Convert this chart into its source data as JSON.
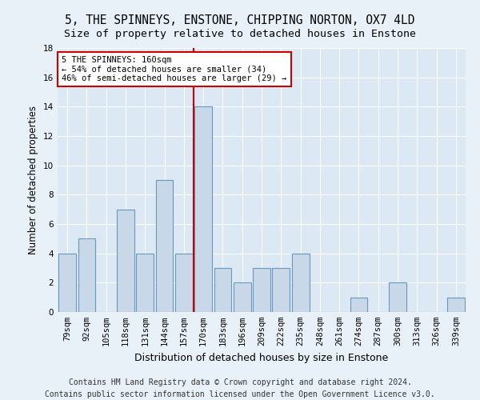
{
  "title1": "5, THE SPINNEYS, ENSTONE, CHIPPING NORTON, OX7 4LD",
  "title2": "Size of property relative to detached houses in Enstone",
  "xlabel": "Distribution of detached houses by size in Enstone",
  "ylabel": "Number of detached properties",
  "categories": [
    "79sqm",
    "92sqm",
    "105sqm",
    "118sqm",
    "131sqm",
    "144sqm",
    "157sqm",
    "170sqm",
    "183sqm",
    "196sqm",
    "209sqm",
    "222sqm",
    "235sqm",
    "248sqm",
    "261sqm",
    "274sqm",
    "287sqm",
    "300sqm",
    "313sqm",
    "326sqm",
    "339sqm"
  ],
  "values": [
    4,
    5,
    0,
    7,
    4,
    9,
    4,
    14,
    3,
    2,
    3,
    3,
    4,
    0,
    0,
    1,
    0,
    2,
    0,
    0,
    1
  ],
  "bar_color": "#c8d8e8",
  "bar_edge_color": "#6699bb",
  "vline_color": "#cc0000",
  "annotation_text": "5 THE SPINNEYS: 160sqm\n← 54% of detached houses are smaller (34)\n46% of semi-detached houses are larger (29) →",
  "annotation_box_color": "#ffffff",
  "annotation_box_edge": "#cc0000",
  "ylim": [
    0,
    18
  ],
  "yticks": [
    0,
    2,
    4,
    6,
    8,
    10,
    12,
    14,
    16,
    18
  ],
  "footer1": "Contains HM Land Registry data © Crown copyright and database right 2024.",
  "footer2": "Contains public sector information licensed under the Open Government Licence v3.0.",
  "bg_color": "#e8f0f8",
  "plot_bg_color": "#dce8f4",
  "grid_color": "#ffffff",
  "title1_fontsize": 10.5,
  "title2_fontsize": 9.5,
  "axis_label_fontsize": 8.5,
  "tick_fontsize": 7.5,
  "footer_fontsize": 7
}
